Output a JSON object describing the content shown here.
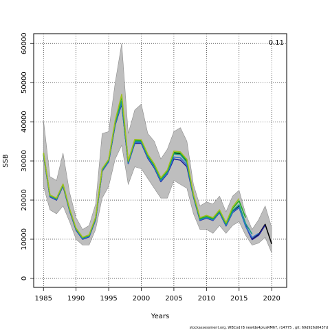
{
  "chart_data": {
    "type": "line",
    "xlabel": "Years",
    "ylabel": "SSB",
    "xlim": [
      1983.5,
      2022.3
    ],
    "ylim": [
      -2300,
      62500
    ],
    "xticks": [
      1985,
      1990,
      1995,
      2000,
      2005,
      2010,
      2015,
      2020
    ],
    "yticks": [
      0,
      10000,
      20000,
      30000,
      40000,
      50000,
      60000
    ],
    "grid": true,
    "corner_label": "0.11",
    "footer": "stockassessment.org,  WBCod IB  newlde4plusRM67,  r14775 ,  git: 69d926d0437d",
    "band": {
      "x": [
        1985,
        1986,
        1987,
        1988,
        1989,
        1990,
        1991,
        1992,
        1993,
        1994,
        1995,
        1996,
        1997,
        1998,
        1999,
        2000,
        2001,
        2002,
        2003,
        2004,
        2005,
        2006,
        2007,
        2008,
        2009,
        2010,
        2011,
        2012,
        2013,
        2014,
        2015,
        2016,
        2017,
        2018,
        2019,
        2020
      ],
      "upper": [
        40500,
        26000,
        25000,
        32000,
        22000,
        15500,
        12500,
        13500,
        19000,
        37000,
        37500,
        50000,
        60000,
        37000,
        43000,
        44500,
        37000,
        35000,
        30500,
        33000,
        37500,
        38500,
        35000,
        24000,
        18500,
        19500,
        19000,
        21000,
        17000,
        21000,
        22500,
        16500,
        12500,
        15000,
        18500,
        13000
      ],
      "lower": [
        23500,
        17500,
        16500,
        18500,
        14500,
        10000,
        8500,
        8500,
        12500,
        20500,
        23500,
        30500,
        34000,
        24000,
        28500,
        28000,
        25500,
        23000,
        20500,
        20500,
        25000,
        24000,
        23000,
        16500,
        12500,
        12500,
        11500,
        13500,
        11500,
        13500,
        14500,
        11000,
        8500,
        9000,
        10500,
        6500
      ]
    },
    "series": [
      {
        "name": "",
        "color": "#000000",
        "x": [
          1985,
          1986,
          1987,
          1988,
          1989,
          1990,
          1991,
          1992,
          1993,
          1994,
          1995,
          1996,
          1997,
          1998,
          1999,
          2000,
          2001,
          2002,
          2003,
          2004,
          2005,
          2006,
          2007,
          2008,
          2009,
          2010,
          2011,
          2012,
          2013,
          2014,
          2015,
          2016,
          2017,
          2018,
          2019,
          2020
        ],
        "values": [
          31800,
          21000,
          20200,
          23800,
          17500,
          12500,
          10200,
          10800,
          15200,
          27600,
          30000,
          39500,
          45000,
          29500,
          34800,
          34800,
          31000,
          28500,
          25000,
          27000,
          32000,
          31800,
          29800,
          21000,
          15000,
          15600,
          15000,
          17000,
          13500,
          17000,
          18400,
          13500,
          10000,
          11200,
          13800,
          8800
        ]
      },
      {
        "name": "",
        "color": "#1f1f9a",
        "x": [
          1985,
          1986,
          1987,
          1988,
          1989,
          1990,
          1991,
          1992,
          1993,
          1994,
          1995,
          1996,
          1997,
          1998,
          1999,
          2000,
          2001,
          2002,
          2003,
          2004,
          2005,
          2006,
          2007,
          2008,
          2009,
          2010,
          2011,
          2012,
          2013,
          2014,
          2015,
          2016,
          2017,
          2018,
          2019
        ],
        "values": [
          31600,
          20800,
          20000,
          23600,
          17300,
          12300,
          10000,
          10600,
          15000,
          27400,
          29800,
          39200,
          44600,
          29300,
          34500,
          34500,
          30700,
          28200,
          24700,
          26700,
          30500,
          30200,
          28500,
          20800,
          14800,
          15400,
          14800,
          16800,
          13400,
          16800,
          18100,
          13400,
          9900,
          11000,
          13600
        ]
      },
      {
        "name": "",
        "color": "#2e6fcf",
        "x": [
          1985,
          1986,
          1987,
          1988,
          1989,
          1990,
          1991,
          1992,
          1993,
          1994,
          1995,
          1996,
          1997,
          1998,
          1999,
          2000,
          2001,
          2002,
          2003,
          2004,
          2005,
          2006,
          2007,
          2008,
          2009,
          2010,
          2011,
          2012,
          2013,
          2014,
          2015,
          2016,
          2017,
          2018
        ],
        "values": [
          31700,
          20900,
          20100,
          23700,
          17400,
          12400,
          10100,
          10700,
          15100,
          27500,
          29900,
          39400,
          44900,
          29400,
          34700,
          34700,
          30900,
          28400,
          24900,
          26900,
          31000,
          30800,
          29000,
          20900,
          14900,
          15500,
          14900,
          16900,
          13500,
          16900,
          18200,
          13300,
          10400,
          11500
        ]
      },
      {
        "name": "",
        "color": "#1a9a8a",
        "x": [
          1985,
          1986,
          1987,
          1988,
          1989,
          1990,
          1991,
          1992,
          1993,
          1994,
          1995,
          1996,
          1997,
          1998,
          1999,
          2000,
          2001,
          2002,
          2003,
          2004,
          2005,
          2006,
          2007,
          2008,
          2009,
          2010,
          2011,
          2012,
          2013,
          2014,
          2015,
          2016,
          2017
        ],
        "values": [
          31900,
          21100,
          20300,
          23900,
          17600,
          12600,
          10300,
          10900,
          15300,
          27700,
          30100,
          39700,
          45300,
          29700,
          35000,
          35000,
          31200,
          28700,
          25200,
          27200,
          31800,
          31600,
          29600,
          21100,
          15100,
          15700,
          15100,
          17100,
          13800,
          17300,
          18800,
          14000,
          11300
        ]
      },
      {
        "name": "",
        "color": "#22b022",
        "x": [
          1985,
          1986,
          1987,
          1988,
          1989,
          1990,
          1991,
          1992,
          1993,
          1994,
          1995,
          1996,
          1997,
          1998,
          1999,
          2000,
          2001,
          2002,
          2003,
          2004,
          2005,
          2006,
          2007,
          2008,
          2009,
          2010,
          2011,
          2012,
          2013,
          2014,
          2015,
          2016
        ],
        "values": [
          32000,
          21200,
          20400,
          24000,
          17700,
          12700,
          10400,
          11000,
          15500,
          27900,
          30300,
          40000,
          46500,
          29900,
          35300,
          35200,
          31500,
          29000,
          25500,
          27500,
          32200,
          32000,
          30100,
          21300,
          15300,
          15900,
          15300,
          17300,
          14000,
          17800,
          19800,
          15500
        ]
      },
      {
        "name": "",
        "color": "#a0c020",
        "x": [
          1985,
          1986,
          1987,
          1988,
          1989,
          1990,
          1991,
          1992,
          1993,
          1994,
          1995,
          1996,
          1997,
          1998,
          1999,
          2000,
          2001,
          2002,
          2003,
          2004,
          2005,
          2006,
          2007,
          2008,
          2009,
          2010,
          2011,
          2012,
          2013,
          2014,
          2015
        ],
        "values": [
          32100,
          21300,
          20500,
          24100,
          17800,
          12800,
          10500,
          11100,
          15600,
          28000,
          30400,
          40300,
          47000,
          30000,
          35500,
          35400,
          31700,
          29200,
          25700,
          27700,
          32500,
          32300,
          30400,
          21500,
          15500,
          16100,
          15500,
          17500,
          14200,
          18200,
          20400
        ]
      }
    ]
  }
}
